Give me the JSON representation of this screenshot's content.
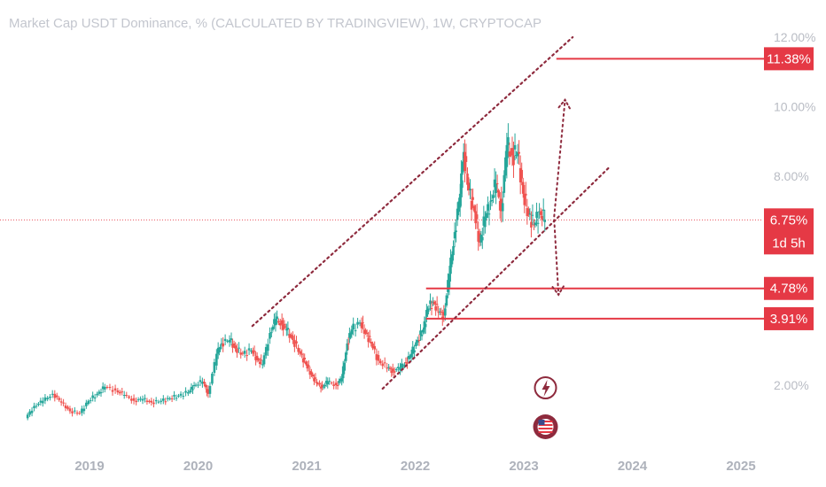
{
  "header": {
    "title": "Market Cap USDT Dominance, % (CALCULATED BY TRADINGVIEW), 1W, CRYPTOCAP"
  },
  "colors": {
    "bull": "#26a69a",
    "bear": "#ef5350",
    "level": "#e53945",
    "channel": "#8e2a3d",
    "badge": "#e53945"
  },
  "icons": [
    "lightning-event-icon",
    "us-flag-event-icon"
  ],
  "chart_data": {
    "type": "candlestick",
    "x_axis": {
      "ticks": [
        "2019",
        "2020",
        "2021",
        "2022",
        "2023",
        "2024",
        "2025"
      ]
    },
    "y_axis": {
      "ticks": [
        "12.00%",
        "10.00%",
        "8.00%",
        "2.00%"
      ],
      "ylim": [
        0.6,
        12.6
      ]
    },
    "grid": false,
    "current_value": 6.75,
    "price_badges": [
      {
        "value": 11.38,
        "label": "11.38%"
      },
      {
        "value": 6.75,
        "label": "6.75%",
        "sublabel": "1d 5h"
      },
      {
        "value": 4.78,
        "label": "4.78%"
      },
      {
        "value": 3.91,
        "label": "3.91%"
      }
    ],
    "horizontal_levels": [
      {
        "value": 11.38,
        "from": "2023.3"
      },
      {
        "value": 4.78,
        "from": "2022.1"
      },
      {
        "value": 3.91,
        "from": "2022.1"
      }
    ],
    "channel_lines": [
      {
        "from": [
          2020.5,
          3.7
        ],
        "to": [
          2023.45,
          12.0
        ]
      },
      {
        "from": [
          2021.7,
          1.9
        ],
        "to": [
          2023.8,
          8.3
        ]
      }
    ],
    "projection_up": {
      "from": [
        2023.28,
        6.85
      ],
      "to": [
        2023.38,
        10.2
      ]
    },
    "projection_down": {
      "from": [
        2023.28,
        6.75
      ],
      "to": [
        2023.32,
        4.6
      ]
    },
    "series_close": [
      [
        2018.42,
        1.05
      ],
      [
        2018.5,
        1.4
      ],
      [
        2018.58,
        1.55
      ],
      [
        2018.67,
        1.75
      ],
      [
        2018.75,
        1.5
      ],
      [
        2018.83,
        1.25
      ],
      [
        2018.92,
        1.2
      ],
      [
        2019.0,
        1.55
      ],
      [
        2019.08,
        1.75
      ],
      [
        2019.15,
        1.95
      ],
      [
        2019.25,
        1.85
      ],
      [
        2019.33,
        1.72
      ],
      [
        2019.42,
        1.55
      ],
      [
        2019.5,
        1.6
      ],
      [
        2019.58,
        1.5
      ],
      [
        2019.67,
        1.55
      ],
      [
        2019.75,
        1.62
      ],
      [
        2019.83,
        1.7
      ],
      [
        2019.92,
        1.8
      ],
      [
        2019.97,
        2.0
      ],
      [
        2020.05,
        2.1
      ],
      [
        2020.1,
        1.75
      ],
      [
        2020.18,
        2.9
      ],
      [
        2020.22,
        3.2
      ],
      [
        2020.3,
        3.3
      ],
      [
        2020.35,
        3.05
      ],
      [
        2020.42,
        2.9
      ],
      [
        2020.5,
        3.0
      ],
      [
        2020.55,
        2.75
      ],
      [
        2020.6,
        2.6
      ],
      [
        2020.67,
        3.5
      ],
      [
        2020.72,
        3.9
      ],
      [
        2020.78,
        3.75
      ],
      [
        2020.82,
        3.6
      ],
      [
        2020.88,
        3.3
      ],
      [
        2020.95,
        2.9
      ],
      [
        2021.0,
        2.6
      ],
      [
        2021.05,
        2.3
      ],
      [
        2021.1,
        2.05
      ],
      [
        2021.15,
        1.95
      ],
      [
        2021.2,
        2.1
      ],
      [
        2021.28,
        2.0
      ],
      [
        2021.33,
        2.2
      ],
      [
        2021.38,
        3.2
      ],
      [
        2021.42,
        3.6
      ],
      [
        2021.5,
        3.8
      ],
      [
        2021.55,
        3.5
      ],
      [
        2021.6,
        3.2
      ],
      [
        2021.67,
        2.7
      ],
      [
        2021.75,
        2.5
      ],
      [
        2021.8,
        2.4
      ],
      [
        2021.87,
        2.5
      ],
      [
        2021.92,
        2.65
      ],
      [
        2021.97,
        2.9
      ],
      [
        2022.03,
        3.3
      ],
      [
        2022.08,
        3.6
      ],
      [
        2022.12,
        4.2
      ],
      [
        2022.17,
        4.4
      ],
      [
        2022.22,
        4.1
      ],
      [
        2022.27,
        4.0
      ],
      [
        2022.32,
        5.2
      ],
      [
        2022.37,
        6.4
      ],
      [
        2022.42,
        7.5
      ],
      [
        2022.45,
        8.7
      ],
      [
        2022.5,
        7.6
      ],
      [
        2022.55,
        7.0
      ],
      [
        2022.6,
        6.1
      ],
      [
        2022.65,
        6.8
      ],
      [
        2022.7,
        7.3
      ],
      [
        2022.75,
        7.8
      ],
      [
        2022.8,
        7.0
      ],
      [
        2022.85,
        8.9
      ],
      [
        2022.9,
        8.6
      ],
      [
        2022.95,
        8.7
      ],
      [
        2023.0,
        7.5
      ],
      [
        2023.05,
        6.9
      ],
      [
        2023.1,
        6.6
      ],
      [
        2023.15,
        7.0
      ],
      [
        2023.2,
        6.75
      ]
    ]
  }
}
